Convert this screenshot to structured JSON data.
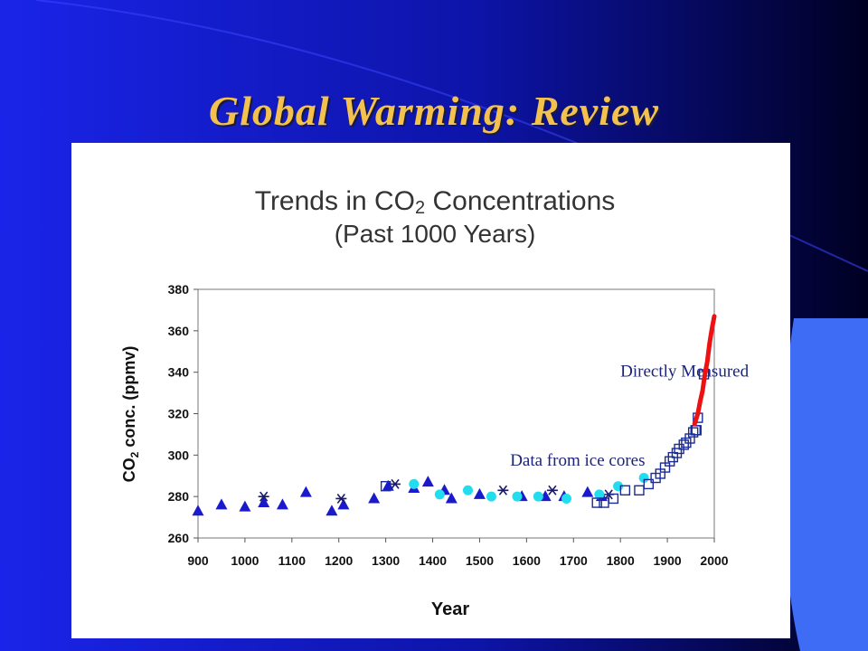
{
  "slide": {
    "title": "Global Warming: Review",
    "colors": {
      "bg_left": "#1a24e8",
      "bg_right": "#000033",
      "title": "#f2c14e",
      "accent_shape": "#3f6cf5"
    }
  },
  "chart_data": {
    "type": "scatter",
    "title_main": "Trends in CO",
    "title_sub": "2",
    "title_end": " Concentrations",
    "subtitle": "(Past 1000 Years)",
    "xlabel": "Year",
    "ylabel_main": "CO",
    "ylabel_sub": "2",
    "ylabel_end": " conc. (ppmv)",
    "xlim": [
      900,
      2000
    ],
    "ylim": [
      260,
      380
    ],
    "xticks": [
      900,
      1000,
      1100,
      1200,
      1300,
      1400,
      1500,
      1600,
      1700,
      1800,
      1900,
      2000
    ],
    "yticks": [
      260,
      280,
      300,
      320,
      340,
      360,
      380
    ],
    "annotations": [
      {
        "text": "Directly Measured",
        "x": 1800,
        "y": 338
      },
      {
        "text": "Data from ice cores",
        "x": 1565,
        "y": 295
      }
    ],
    "series": [
      {
        "marker": "triangle",
        "color": "#1a1acc",
        "points": [
          [
            900,
            273
          ],
          [
            950,
            276
          ],
          [
            1000,
            275
          ],
          [
            1040,
            277
          ],
          [
            1080,
            276
          ],
          [
            1130,
            282
          ],
          [
            1185,
            273
          ],
          [
            1210,
            276
          ],
          [
            1275,
            279
          ],
          [
            1305,
            285
          ],
          [
            1360,
            284
          ],
          [
            1390,
            287
          ],
          [
            1425,
            283
          ],
          [
            1440,
            279
          ],
          [
            1500,
            281
          ],
          [
            1590,
            280
          ],
          [
            1640,
            280
          ],
          [
            1680,
            280
          ],
          [
            1730,
            282
          ],
          [
            1760,
            280
          ]
        ]
      },
      {
        "marker": "star",
        "color": "#1a1a66",
        "points": [
          [
            1040,
            280
          ],
          [
            1205,
            279
          ],
          [
            1320,
            286
          ],
          [
            1550,
            283
          ],
          [
            1655,
            283
          ],
          [
            1775,
            281
          ]
        ]
      },
      {
        "marker": "circle",
        "color": "#22ddee",
        "points": [
          [
            1360,
            286
          ],
          [
            1415,
            281
          ],
          [
            1475,
            283
          ],
          [
            1525,
            280
          ],
          [
            1580,
            280
          ],
          [
            1625,
            280
          ],
          [
            1685,
            279
          ],
          [
            1755,
            281
          ],
          [
            1795,
            285
          ],
          [
            1850,
            289
          ]
        ]
      },
      {
        "marker": "square",
        "color": "#1a2a99",
        "points": [
          [
            1300,
            285
          ],
          [
            1750,
            277
          ],
          [
            1765,
            277
          ],
          [
            1785,
            279
          ],
          [
            1810,
            283
          ],
          [
            1840,
            283
          ],
          [
            1860,
            286
          ],
          [
            1875,
            289
          ],
          [
            1885,
            291
          ],
          [
            1895,
            294
          ],
          [
            1905,
            297
          ],
          [
            1912,
            299
          ],
          [
            1920,
            301
          ],
          [
            1925,
            303
          ],
          [
            1935,
            305
          ],
          [
            1940,
            306
          ],
          [
            1948,
            308
          ],
          [
            1955,
            311
          ],
          [
            1960,
            312
          ],
          [
            1962,
            312
          ],
          [
            1965,
            318
          ],
          [
            1978,
            339
          ]
        ]
      },
      {
        "marker": "line",
        "color": "#ee1111",
        "points": [
          [
            1958,
            315
          ],
          [
            1965,
            320
          ],
          [
            1970,
            326
          ],
          [
            1975,
            331
          ],
          [
            1980,
            339
          ],
          [
            1985,
            345
          ],
          [
            1990,
            354
          ],
          [
            1995,
            361
          ],
          [
            2000,
            367
          ]
        ]
      }
    ]
  }
}
